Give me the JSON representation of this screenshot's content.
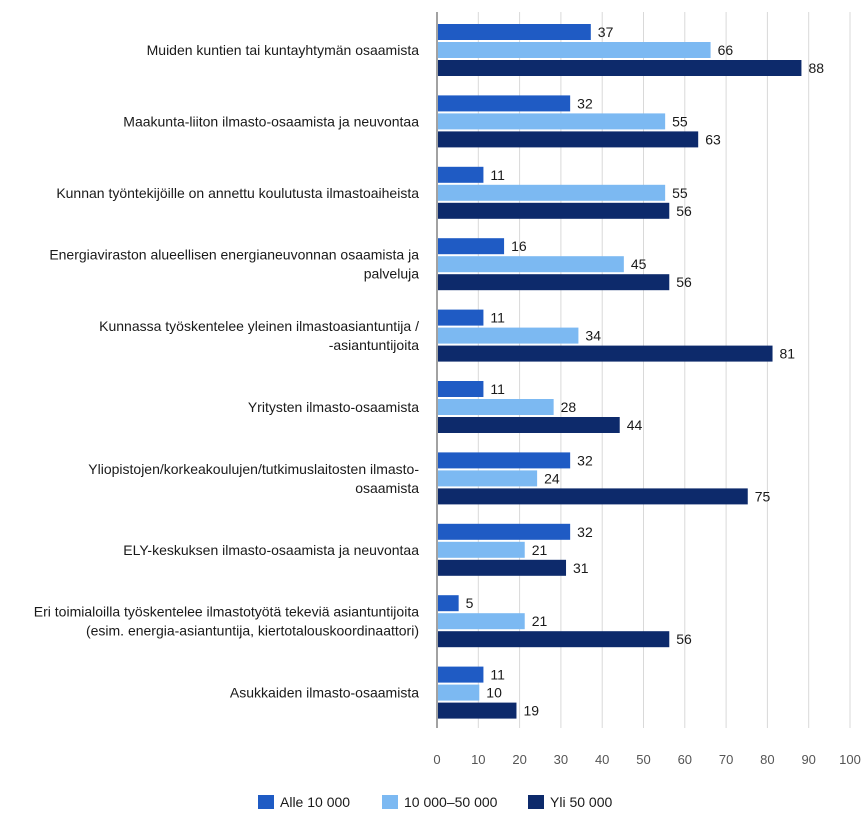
{
  "chart_data": {
    "type": "bar",
    "orientation": "horizontal",
    "categories": [
      [
        "Muiden kuntien tai kuntayhtymän osaamista"
      ],
      [
        "Maakunta-liiton  ilmasto-osaamista ja neuvontaa"
      ],
      [
        "Kunnan työntekijöille on annettu koulutusta ilmastoaiheista"
      ],
      [
        "Energiaviraston alueellisen energianeuvonnan osaamista ja",
        "palveluja"
      ],
      [
        "Kunnassa työskentelee yleinen ilmastoasiantuntija /",
        "-asiantuntijoita"
      ],
      [
        "Yritysten ilmasto-osaamista"
      ],
      [
        "Yliopistojen/korkeakoulujen/tutkimuslaitosten ilmasto-",
        "osaamista"
      ],
      [
        "ELY-keskuksen ilmasto-osaamista ja neuvontaa"
      ],
      [
        "Eri toimialoilla työskentelee ilmastotyötä tekeviä asiantuntijoita",
        "(esim. energia-asiantuntija, kiertotalouskoordinaattori)"
      ],
      [
        "Asukkaiden ilmasto-osaamista"
      ]
    ],
    "series": [
      {
        "name": "Alle 10 000",
        "color": "#1f5bc4",
        "values": [
          37,
          32,
          11,
          16,
          11,
          11,
          32,
          32,
          5,
          11
        ]
      },
      {
        "name": "10 000–50 000",
        "color": "#7cb9f2",
        "values": [
          66,
          55,
          55,
          45,
          34,
          28,
          24,
          21,
          21,
          10
        ]
      },
      {
        "name": "Yli 50 000",
        "color": "#0d2a6b",
        "values": [
          88,
          63,
          56,
          56,
          81,
          44,
          75,
          31,
          56,
          19
        ]
      }
    ],
    "xlim": [
      0,
      100
    ],
    "xticks": [
      0,
      10,
      20,
      30,
      40,
      50,
      60,
      70,
      80,
      90,
      100
    ],
    "xtick_labels": [
      "0",
      "10",
      "20",
      "30",
      "40",
      "50",
      "60",
      "70",
      "80",
      "90",
      "100"
    ],
    "grid": "vertical",
    "legend": "bottom"
  }
}
